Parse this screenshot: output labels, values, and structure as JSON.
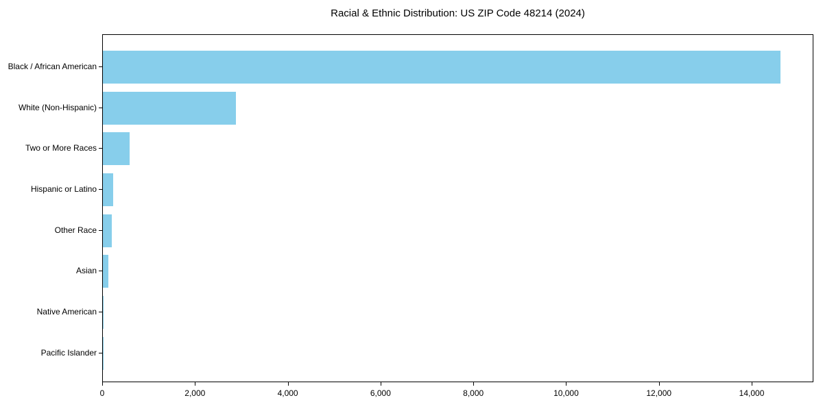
{
  "page": {
    "background": "#ffffff"
  },
  "chart_data": {
    "type": "bar",
    "orientation": "horizontal",
    "title": "Racial & Ethnic Distribution: US ZIP Code 48214 (2024)",
    "categories": [
      "Black / African American",
      "White (Non-Hispanic)",
      "Two or More Races",
      "Hispanic or Latino",
      "Other Race",
      "Asian",
      "Native American",
      "Pacific Islander"
    ],
    "values": [
      14600,
      2870,
      580,
      220,
      190,
      120,
      15,
      5
    ],
    "xlabel": "",
    "ylabel": "",
    "xlim": [
      0,
      15330
    ],
    "x_ticks": [
      0,
      2000,
      4000,
      6000,
      8000,
      10000,
      12000,
      14000
    ],
    "x_tick_labels": [
      "0",
      "2,000",
      "4,000",
      "6,000",
      "8,000",
      "10,000",
      "12,000",
      "14,000"
    ],
    "grid": false,
    "legend": "none",
    "bar_color": "#87CEEB",
    "axis_color": "#000000",
    "text_color": "#000000"
  }
}
